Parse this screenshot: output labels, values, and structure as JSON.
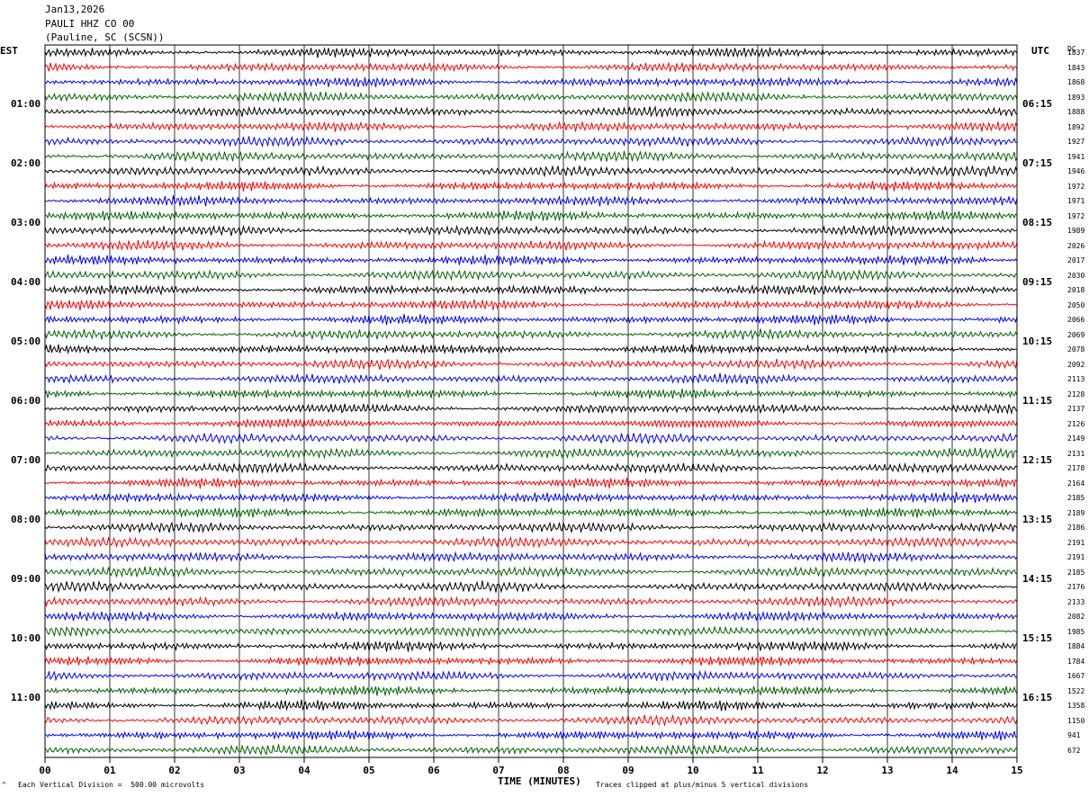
{
  "header": {
    "date": "Jan13,2026",
    "channel": "PAULI HHZ CO 00",
    "location": "(Pauline, SC (SCSN))"
  },
  "labels": {
    "left_tz": "EST",
    "right_tz": "UTC",
    "dc": "DC"
  },
  "footer": {
    "division": "Each Vertical Division =  500.00 microvolts",
    "xlabel": "TIME (MINUTES)",
    "clip": "Traces clipped at plus/minus 5 vertical divisions",
    "mark": "^"
  },
  "chart_data": {
    "type": "line",
    "xlabel": "TIME (MINUTES)",
    "xlim": [
      0,
      15
    ],
    "x_ticks": [
      "00",
      "01",
      "02",
      "03",
      "04",
      "05",
      "06",
      "07",
      "08",
      "09",
      "10",
      "11",
      "12",
      "13",
      "14",
      "15"
    ],
    "left_hour_labels": [
      "01:00",
      "02:00",
      "03:00",
      "04:00",
      "05:00",
      "06:00",
      "07:00",
      "08:00",
      "09:00",
      "10:00",
      "11:00"
    ],
    "right_hour_labels": [
      "06:15",
      "07:15",
      "08:15",
      "09:15",
      "10:15",
      "11:15",
      "12:15",
      "13:15",
      "14:15",
      "15:15",
      "16:15"
    ],
    "trace_colors": [
      "#000000",
      "#ff0000",
      "#0000ff",
      "#006400"
    ],
    "grid": true,
    "dc_offsets": [
      "1837",
      "1843",
      "1868",
      "1893",
      "1888",
      "1892",
      "1927",
      "1941",
      "1946",
      "1972",
      "1971",
      "1972",
      "1989",
      "2026",
      "2017",
      "2030",
      "2018",
      "2050",
      "2066",
      "2069",
      "2078",
      "2092",
      "2113",
      "2128",
      "2137",
      "2126",
      "2149",
      "2131",
      "2178",
      "2164",
      "2185",
      "2189",
      "2186",
      "2191",
      "2191",
      "2185",
      "2176",
      "2133",
      "2082",
      "1985",
      "1884",
      "1784",
      "1667",
      "1522",
      "1358",
      "1150",
      "941",
      "672"
    ]
  }
}
